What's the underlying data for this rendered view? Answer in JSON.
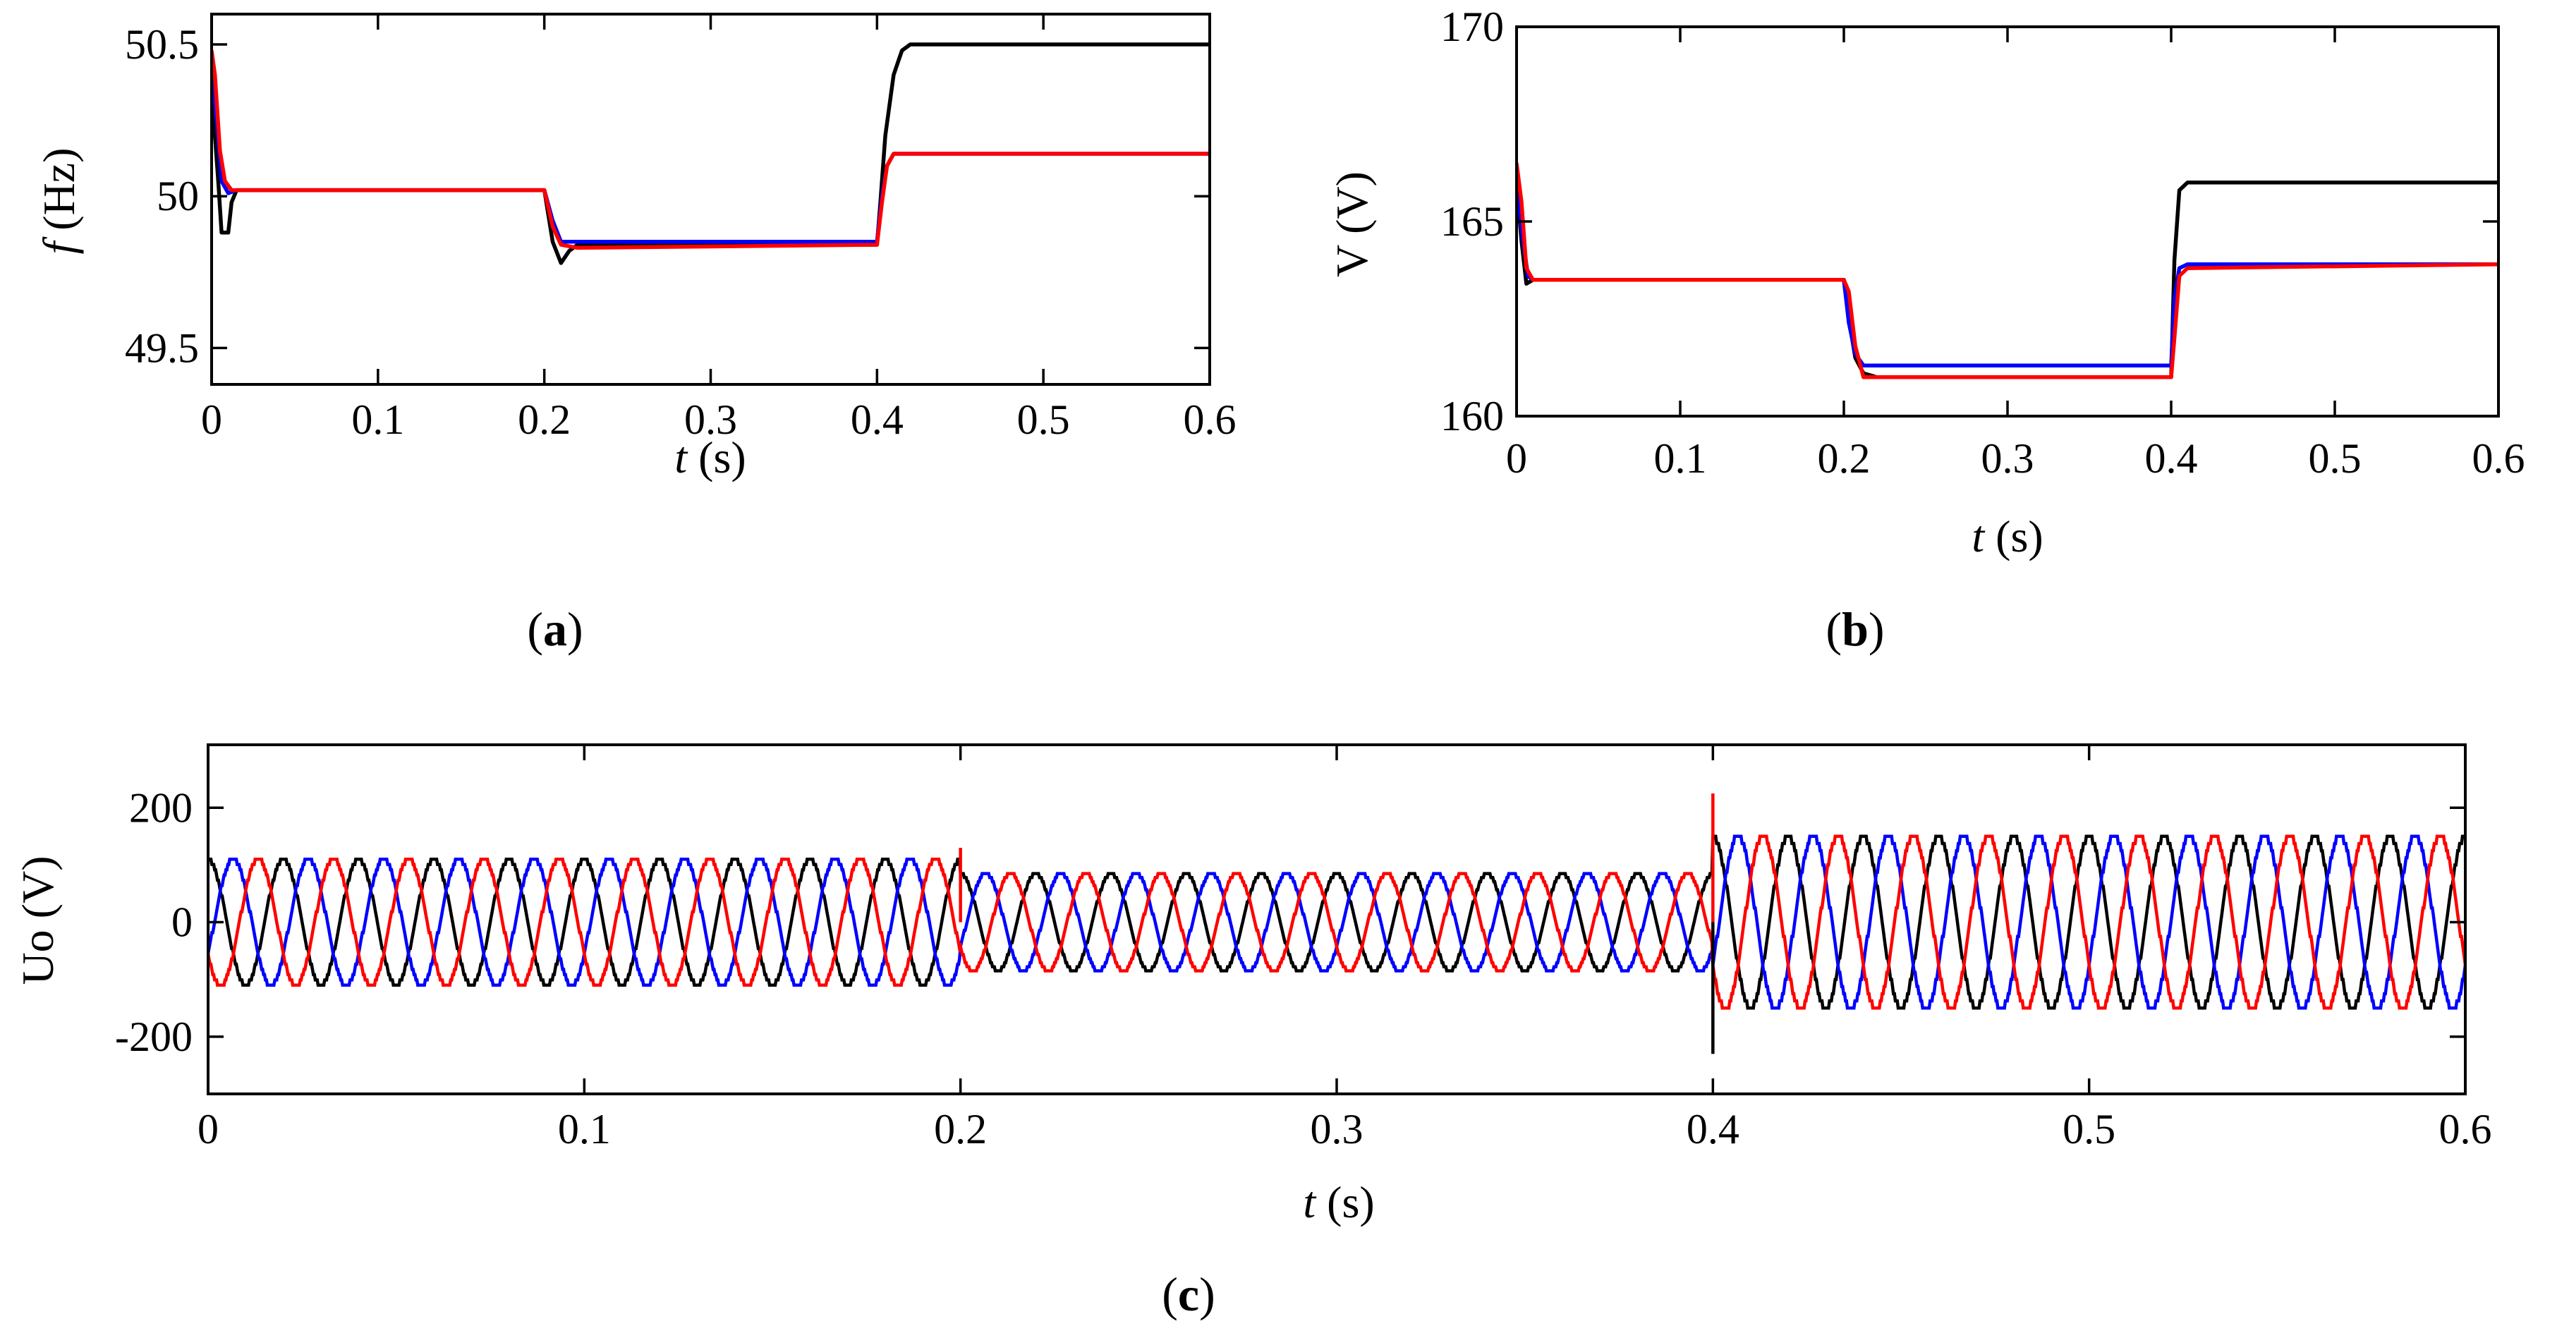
{
  "chart_data": [
    {
      "type": "line",
      "panel_label": "a",
      "xlabel": {
        "var": "t",
        "unit": "(s)"
      },
      "ylabel": {
        "var": "f",
        "unit": "(Hz)"
      },
      "xlim": [
        0,
        0.6
      ],
      "ylim": [
        49.38,
        50.6
      ],
      "xticks": [
        0,
        0.1,
        0.2,
        0.3,
        0.4,
        0.5,
        0.6
      ],
      "xtick_labels": [
        "0",
        "0.1",
        "0.2",
        "0.3",
        "0.4",
        "0.5",
        "0.6"
      ],
      "yticks": [
        49.5,
        50,
        50.5
      ],
      "ytick_labels": [
        "49.5",
        "50",
        "50.5"
      ],
      "series": [
        {
          "name": "black",
          "color": "#000000",
          "x": [
            0,
            0.002,
            0.004,
            0.006,
            0.01,
            0.012,
            0.015,
            0.2,
            0.205,
            0.21,
            0.215,
            0.22,
            0.4,
            0.402,
            0.405,
            0.41,
            0.415,
            0.42,
            0.6
          ],
          "y": [
            50.45,
            50.2,
            50.05,
            49.88,
            49.88,
            49.98,
            50.02,
            50.02,
            49.85,
            49.78,
            49.82,
            49.84,
            49.84,
            49.98,
            50.2,
            50.4,
            50.48,
            50.5,
            50.5
          ]
        },
        {
          "name": "blue",
          "color": "#0000ff",
          "x": [
            0,
            0.003,
            0.006,
            0.01,
            0.015,
            0.2,
            0.205,
            0.21,
            0.22,
            0.4,
            0.403,
            0.406,
            0.41,
            0.6
          ],
          "y": [
            50.42,
            50.25,
            50.05,
            50.01,
            50.02,
            50.02,
            49.92,
            49.85,
            49.85,
            49.85,
            50.0,
            50.1,
            50.14,
            50.14
          ]
        },
        {
          "name": "red",
          "color": "#ff0000",
          "x": [
            0,
            0.002,
            0.005,
            0.008,
            0.012,
            0.02,
            0.2,
            0.205,
            0.21,
            0.22,
            0.4,
            0.403,
            0.406,
            0.41,
            0.6
          ],
          "y": [
            50.48,
            50.4,
            50.15,
            50.05,
            50.02,
            50.02,
            50.02,
            49.9,
            49.84,
            49.83,
            49.84,
            49.98,
            50.1,
            50.14,
            50.14
          ]
        }
      ]
    },
    {
      "type": "line",
      "panel_label": "b",
      "xlabel": {
        "var": "t",
        "unit": "(s)"
      },
      "ylabel": {
        "var": "V",
        "unit": "(V)"
      },
      "xlim": [
        0,
        0.6
      ],
      "ylim": [
        160,
        170
      ],
      "xticks": [
        0,
        0.1,
        0.2,
        0.3,
        0.4,
        0.5,
        0.6
      ],
      "xtick_labels": [
        "0",
        "0.1",
        "0.2",
        "0.3",
        "0.4",
        "0.5",
        "0.6"
      ],
      "yticks": [
        160,
        165,
        170
      ],
      "ytick_labels": [
        "160",
        "165",
        "170"
      ],
      "series": [
        {
          "name": "black",
          "color": "#000000",
          "x": [
            0,
            0.003,
            0.006,
            0.01,
            0.2,
            0.203,
            0.207,
            0.212,
            0.22,
            0.4,
            0.402,
            0.405,
            0.41,
            0.6
          ],
          "y": [
            166.0,
            164.5,
            163.4,
            163.5,
            163.5,
            162.5,
            161.5,
            161.1,
            161.0,
            161.0,
            164.0,
            165.8,
            166.0,
            166.0
          ]
        },
        {
          "name": "blue",
          "color": "#0000ff",
          "x": [
            0,
            0.003,
            0.007,
            0.01,
            0.2,
            0.203,
            0.207,
            0.212,
            0.22,
            0.4,
            0.402,
            0.405,
            0.41,
            0.6
          ],
          "y": [
            166.2,
            164.8,
            163.6,
            163.5,
            163.5,
            162.4,
            161.6,
            161.3,
            161.3,
            161.3,
            163.0,
            163.8,
            163.9,
            163.9
          ]
        },
        {
          "name": "red",
          "color": "#ff0000",
          "x": [
            0,
            0.003,
            0.006,
            0.01,
            0.2,
            0.203,
            0.207,
            0.212,
            0.22,
            0.4,
            0.402,
            0.405,
            0.41,
            0.6
          ],
          "y": [
            166.5,
            165.5,
            163.8,
            163.5,
            163.5,
            163.2,
            161.8,
            161.0,
            161.0,
            161.0,
            162.0,
            163.6,
            163.8,
            163.9
          ]
        }
      ]
    },
    {
      "type": "line",
      "panel_label": "c",
      "xlabel": {
        "var": "t",
        "unit": "(s)"
      },
      "ylabel": {
        "var": "",
        "unit": "Uo (V)"
      },
      "xlim": [
        0,
        0.6
      ],
      "ylim": [
        -300,
        310
      ],
      "xticks": [
        0,
        0.1,
        0.2,
        0.3,
        0.4,
        0.5,
        0.6
      ],
      "xtick_labels": [
        "0",
        "0.1",
        "0.2",
        "0.3",
        "0.4",
        "0.5",
        "0.6"
      ],
      "yticks": [
        -200,
        0,
        200
      ],
      "ytick_labels": [
        "-200",
        "0",
        "200"
      ],
      "waveform": {
        "frequency_hz": 50,
        "segments": [
          {
            "t_start": 0,
            "t_end": 0.2,
            "amplitude": 110
          },
          {
            "t_start": 0.2,
            "t_end": 0.4,
            "amplitude": 85
          },
          {
            "t_start": 0.4,
            "t_end": 0.6,
            "amplitude": 150
          }
        ],
        "transient_spikes": [
          {
            "t": 0.2,
            "series": "red",
            "value": 130
          },
          {
            "t": 0.4,
            "series": "red",
            "value": 225
          },
          {
            "t": 0.4,
            "series": "black",
            "value": -230
          }
        ]
      },
      "series": [
        {
          "name": "black",
          "color": "#000000",
          "phase_deg": 90
        },
        {
          "name": "blue",
          "color": "#0000ff",
          "phase_deg": -30
        },
        {
          "name": "red",
          "color": "#ff0000",
          "phase_deg": 210
        }
      ]
    }
  ]
}
